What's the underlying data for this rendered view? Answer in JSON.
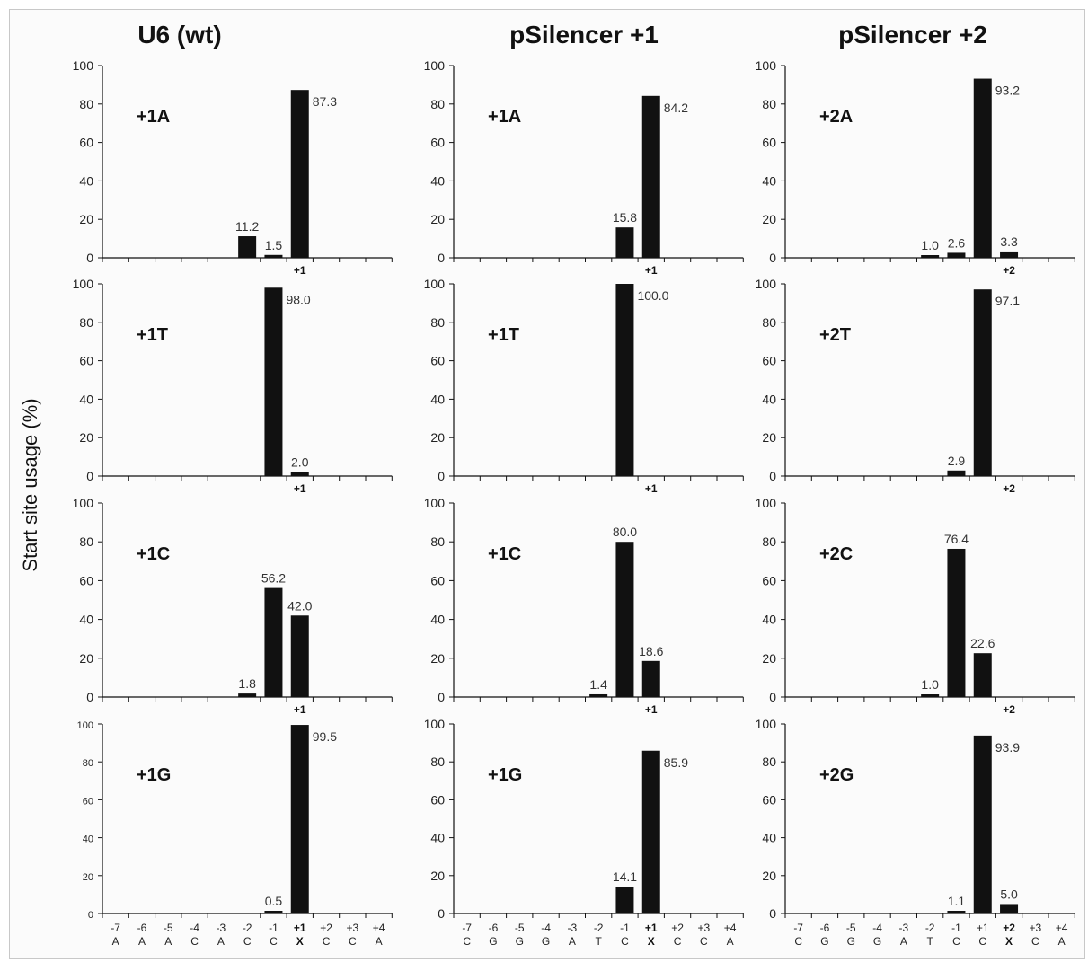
{
  "figure": {
    "column_titles": [
      "U6 (wt)",
      "pSilencer +1",
      "pSilencer +2"
    ],
    "ylabel": "Start site usage (%)"
  },
  "chart_data": [
    {
      "type": "bar",
      "column": 0,
      "row": 0,
      "panel_label": "+1A",
      "ylim": [
        0,
        100
      ],
      "yticks": [
        "0",
        "20",
        "40",
        "60",
        "80",
        "100"
      ],
      "categories": [
        "-7",
        "-6",
        "-5",
        "-4",
        "-3",
        "-2",
        "-1",
        "+1",
        "+2",
        "+3",
        "+4"
      ],
      "bases": [
        "A",
        "A",
        "A",
        "C",
        "A",
        "C",
        "C",
        "X",
        "C",
        "C",
        "A"
      ],
      "values": [
        0,
        0,
        0,
        0,
        0,
        11.2,
        1.5,
        87.3,
        0,
        0,
        0
      ],
      "labels": [
        "",
        "",
        "",
        "",
        "",
        "11.2",
        "1.5",
        "87.3",
        "",
        "",
        ""
      ],
      "start_marker": "+1",
      "show_axis_labels": false
    },
    {
      "type": "bar",
      "column": 0,
      "row": 1,
      "panel_label": "+1T",
      "ylim": [
        0,
        100
      ],
      "yticks": [
        "0",
        "20",
        "40",
        "60",
        "80",
        "100"
      ],
      "categories": [
        "-7",
        "-6",
        "-5",
        "-4",
        "-3",
        "-2",
        "-1",
        "+1",
        "+2",
        "+3",
        "+4"
      ],
      "bases": [
        "A",
        "A",
        "A",
        "C",
        "A",
        "C",
        "C",
        "X",
        "C",
        "C",
        "A"
      ],
      "values": [
        0,
        0,
        0,
        0,
        0,
        0,
        98.0,
        2.0,
        0,
        0,
        0
      ],
      "labels": [
        "",
        "",
        "",
        "",
        "",
        "",
        "98.0",
        "2.0",
        "",
        "",
        ""
      ],
      "start_marker": "+1",
      "show_axis_labels": false
    },
    {
      "type": "bar",
      "column": 0,
      "row": 2,
      "panel_label": "+1C",
      "ylim": [
        0,
        100
      ],
      "yticks": [
        "0",
        "20",
        "40",
        "60",
        "80",
        "100"
      ],
      "categories": [
        "-7",
        "-6",
        "-5",
        "-4",
        "-3",
        "-2",
        "-1",
        "+1",
        "+2",
        "+3",
        "+4"
      ],
      "bases": [
        "A",
        "A",
        "A",
        "C",
        "A",
        "C",
        "C",
        "X",
        "C",
        "C",
        "A"
      ],
      "values": [
        0,
        0,
        0,
        0,
        0,
        1.8,
        56.2,
        42.0,
        0,
        0,
        0
      ],
      "labels": [
        "",
        "",
        "",
        "",
        "",
        "1.8",
        "56.2",
        "42.0",
        "",
        "",
        ""
      ],
      "start_marker": "+1",
      "show_axis_labels": false
    },
    {
      "type": "bar",
      "column": 0,
      "row": 3,
      "panel_label": "+1G",
      "ylim": [
        0,
        100
      ],
      "yticks": [
        "0",
        "20",
        "40",
        "60",
        "80",
        "100"
      ],
      "categories": [
        "-7",
        "-6",
        "-5",
        "-4",
        "-3",
        "-2",
        "-1",
        "+1",
        "+2",
        "+3",
        "+4"
      ],
      "bases": [
        "A",
        "A",
        "A",
        "C",
        "A",
        "C",
        "C",
        "X",
        "C",
        "C",
        "A"
      ],
      "values": [
        0,
        0,
        0,
        0,
        0,
        0,
        0.5,
        99.5,
        0,
        0,
        0
      ],
      "labels": [
        "",
        "",
        "",
        "",
        "",
        "",
        "0.5",
        "99.5",
        "",
        "",
        ""
      ],
      "start_marker": "",
      "show_axis_labels": true
    },
    {
      "type": "bar",
      "column": 1,
      "row": 0,
      "panel_label": "+1A",
      "ylim": [
        0,
        100
      ],
      "yticks": [
        "0",
        "20",
        "40",
        "60",
        "80",
        "100"
      ],
      "categories": [
        "-7",
        "-6",
        "-5",
        "-4",
        "-3",
        "-2",
        "-1",
        "+1",
        "+2",
        "+3",
        "+4"
      ],
      "bases": [
        "C",
        "G",
        "G",
        "G",
        "A",
        "T",
        "C",
        "X",
        "C",
        "C",
        "A"
      ],
      "values": [
        0,
        0,
        0,
        0,
        0,
        0,
        15.8,
        84.2,
        0,
        0,
        0
      ],
      "labels": [
        "",
        "",
        "",
        "",
        "",
        "",
        "15.8",
        "84.2",
        "",
        "",
        ""
      ],
      "start_marker": "+1",
      "show_axis_labels": false
    },
    {
      "type": "bar",
      "column": 1,
      "row": 1,
      "panel_label": "+1T",
      "ylim": [
        0,
        100
      ],
      "yticks": [
        "0",
        "20",
        "40",
        "60",
        "80",
        "100"
      ],
      "categories": [
        "-7",
        "-6",
        "-5",
        "-4",
        "-3",
        "-2",
        "-1",
        "+1",
        "+2",
        "+3",
        "+4"
      ],
      "bases": [
        "C",
        "G",
        "G",
        "G",
        "A",
        "T",
        "C",
        "X",
        "C",
        "C",
        "A"
      ],
      "values": [
        0,
        0,
        0,
        0,
        0,
        0,
        100.0,
        0,
        0,
        0,
        0
      ],
      "labels": [
        "",
        "",
        "",
        "",
        "",
        "",
        "100.0",
        "",
        "",
        "",
        ""
      ],
      "start_marker": "+1",
      "show_axis_labels": false
    },
    {
      "type": "bar",
      "column": 1,
      "row": 2,
      "panel_label": "+1C",
      "ylim": [
        0,
        100
      ],
      "yticks": [
        "0",
        "20",
        "40",
        "60",
        "80",
        "100"
      ],
      "categories": [
        "-7",
        "-6",
        "-5",
        "-4",
        "-3",
        "-2",
        "-1",
        "+1",
        "+2",
        "+3",
        "+4"
      ],
      "bases": [
        "C",
        "G",
        "G",
        "G",
        "A",
        "T",
        "C",
        "X",
        "C",
        "C",
        "A"
      ],
      "values": [
        0,
        0,
        0,
        0,
        0,
        1.4,
        80.0,
        18.6,
        0,
        0,
        0
      ],
      "labels": [
        "",
        "",
        "",
        "",
        "",
        "1.4",
        "80.0",
        "18.6",
        "",
        "",
        ""
      ],
      "start_marker": "+1",
      "show_axis_labels": false
    },
    {
      "type": "bar",
      "column": 1,
      "row": 3,
      "panel_label": "+1G",
      "ylim": [
        0,
        100
      ],
      "yticks": [
        "0",
        "20",
        "40",
        "60",
        "80",
        "100"
      ],
      "categories": [
        "-7",
        "-6",
        "-5",
        "-4",
        "-3",
        "-2",
        "-1",
        "+1",
        "+2",
        "+3",
        "+4"
      ],
      "bases": [
        "C",
        "G",
        "G",
        "G",
        "A",
        "T",
        "C",
        "X",
        "C",
        "C",
        "A"
      ],
      "values": [
        0,
        0,
        0,
        0,
        0,
        0,
        14.1,
        85.9,
        0,
        0,
        0
      ],
      "labels": [
        "",
        "",
        "",
        "",
        "",
        "",
        "14.1",
        "85.9",
        "",
        "",
        ""
      ],
      "start_marker": "",
      "show_axis_labels": true
    },
    {
      "type": "bar",
      "column": 2,
      "row": 0,
      "panel_label": "+2A",
      "ylim": [
        0,
        100
      ],
      "yticks": [
        "0",
        "20",
        "40",
        "60",
        "80",
        "100"
      ],
      "categories": [
        "-7",
        "-6",
        "-5",
        "-4",
        "-3",
        "-2",
        "-1",
        "+1",
        "+2",
        "+3",
        "+4"
      ],
      "bases": [
        "C",
        "G",
        "G",
        "G",
        "A",
        "T",
        "C",
        "C",
        "X",
        "C",
        "A"
      ],
      "values": [
        0,
        0,
        0,
        0,
        0,
        1.0,
        2.6,
        93.2,
        3.3,
        0,
        0
      ],
      "labels": [
        "",
        "",
        "",
        "",
        "",
        "1.0",
        "2.6",
        "93.2",
        "3.3",
        "",
        ""
      ],
      "start_marker": "+2",
      "show_axis_labels": false
    },
    {
      "type": "bar",
      "column": 2,
      "row": 1,
      "panel_label": "+2T",
      "ylim": [
        0,
        100
      ],
      "yticks": [
        "0",
        "20",
        "40",
        "60",
        "80",
        "100"
      ],
      "categories": [
        "-7",
        "-6",
        "-5",
        "-4",
        "-3",
        "-2",
        "-1",
        "+1",
        "+2",
        "+3",
        "+4"
      ],
      "bases": [
        "C",
        "G",
        "G",
        "G",
        "A",
        "T",
        "C",
        "C",
        "X",
        "C",
        "A"
      ],
      "values": [
        0,
        0,
        0,
        0,
        0,
        0,
        2.9,
        97.1,
        0,
        0,
        0
      ],
      "labels": [
        "",
        "",
        "",
        "",
        "",
        "",
        "2.9",
        "97.1",
        "",
        "",
        ""
      ],
      "start_marker": "+2",
      "show_axis_labels": false
    },
    {
      "type": "bar",
      "column": 2,
      "row": 2,
      "panel_label": "+2C",
      "ylim": [
        0,
        100
      ],
      "yticks": [
        "0",
        "20",
        "40",
        "60",
        "80",
        "100"
      ],
      "categories": [
        "-7",
        "-6",
        "-5",
        "-4",
        "-3",
        "-2",
        "-1",
        "+1",
        "+2",
        "+3",
        "+4"
      ],
      "bases": [
        "C",
        "G",
        "G",
        "G",
        "A",
        "T",
        "C",
        "C",
        "X",
        "C",
        "A"
      ],
      "values": [
        0,
        0,
        0,
        0,
        0,
        1.0,
        76.4,
        22.6,
        0,
        0,
        0
      ],
      "labels": [
        "",
        "",
        "",
        "",
        "",
        "1.0",
        "76.4",
        "22.6",
        "",
        "",
        ""
      ],
      "start_marker": "+2",
      "show_axis_labels": false
    },
    {
      "type": "bar",
      "column": 2,
      "row": 3,
      "panel_label": "+2G",
      "ylim": [
        0,
        100
      ],
      "yticks": [
        "0",
        "20",
        "40",
        "60",
        "80",
        "100"
      ],
      "categories": [
        "-7",
        "-6",
        "-5",
        "-4",
        "-3",
        "-2",
        "-1",
        "+1",
        "+2",
        "+3",
        "+4"
      ],
      "bases": [
        "C",
        "G",
        "G",
        "G",
        "A",
        "T",
        "C",
        "C",
        "X",
        "C",
        "A"
      ],
      "values": [
        0,
        0,
        0,
        0,
        0,
        0,
        1.1,
        93.9,
        5.0,
        0,
        0
      ],
      "labels": [
        "",
        "",
        "",
        "",
        "",
        "",
        "1.1",
        "93.9",
        "5.0",
        "",
        ""
      ],
      "start_marker": "",
      "show_axis_labels": true
    }
  ]
}
